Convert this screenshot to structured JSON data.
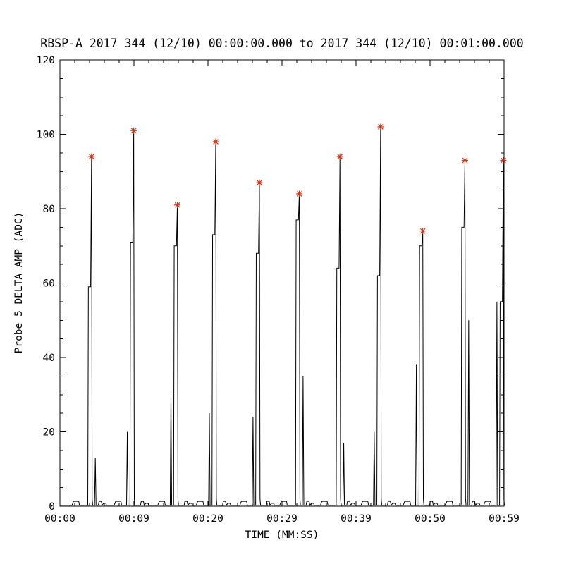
{
  "window": {
    "background": "#ffffff"
  },
  "chart_data": {
    "type": "line",
    "title": "RBSP-A 2017 344 (12/10) 00:00:00.000 to 2017 344 (12/10) 00:01:00.000",
    "xlabel": "TIME (MM:SS)",
    "ylabel": "Probe 5 DELTA AMP (ADC)",
    "xlim": [
      0,
      59
    ],
    "ylim": [
      0,
      120
    ],
    "grid": false,
    "legend": "none",
    "line_color": "#000000",
    "axis_color": "#000000",
    "marker": {
      "symbol": "asterisk",
      "color": "#cc3311"
    },
    "y_ticks": [
      0,
      20,
      40,
      60,
      80,
      100,
      120
    ],
    "y_minor_step": 5,
    "x_ticks": [
      {
        "t": 0,
        "label": "00:00"
      },
      {
        "t": 9.833,
        "label": "00:09"
      },
      {
        "t": 19.667,
        "label": "00:20"
      },
      {
        "t": 29.5,
        "label": "00:29"
      },
      {
        "t": 39.333,
        "label": "00:39"
      },
      {
        "t": 49.167,
        "label": "00:50"
      },
      {
        "t": 59,
        "label": "00:59"
      }
    ],
    "x_minor_divisions": 5,
    "spikes": [
      {
        "t": 4.2,
        "peak": 94,
        "mid": 59,
        "sec": 13,
        "sec_side": "after"
      },
      {
        "t": 9.8,
        "peak": 101,
        "mid": 71,
        "sec": 20,
        "sec_side": "before"
      },
      {
        "t": 15.6,
        "peak": 81,
        "mid": 70,
        "sec": 30,
        "sec_side": "before"
      },
      {
        "t": 20.7,
        "peak": 98,
        "mid": 73,
        "sec": 25,
        "sec_side": "before"
      },
      {
        "t": 26.5,
        "peak": 87,
        "mid": 68,
        "sec": 24,
        "sec_side": "before"
      },
      {
        "t": 31.8,
        "peak": 84,
        "mid": 77,
        "sec": 35,
        "sec_side": "after"
      },
      {
        "t": 37.2,
        "peak": 94,
        "mid": 64,
        "sec": 17,
        "sec_side": "after"
      },
      {
        "t": 42.6,
        "peak": 102,
        "mid": 62,
        "sec": 20,
        "sec_side": "before"
      },
      {
        "t": 48.2,
        "peak": 74,
        "mid": 70,
        "sec": 38,
        "sec_side": "before"
      },
      {
        "t": 53.8,
        "peak": 93,
        "mid": 75,
        "sec": 50,
        "sec_side": "after"
      },
      {
        "t": 58.9,
        "peak": 93,
        "mid": 55,
        "sec": 55,
        "sec_side": "before"
      }
    ],
    "baseline_noise_level": 1.3
  }
}
